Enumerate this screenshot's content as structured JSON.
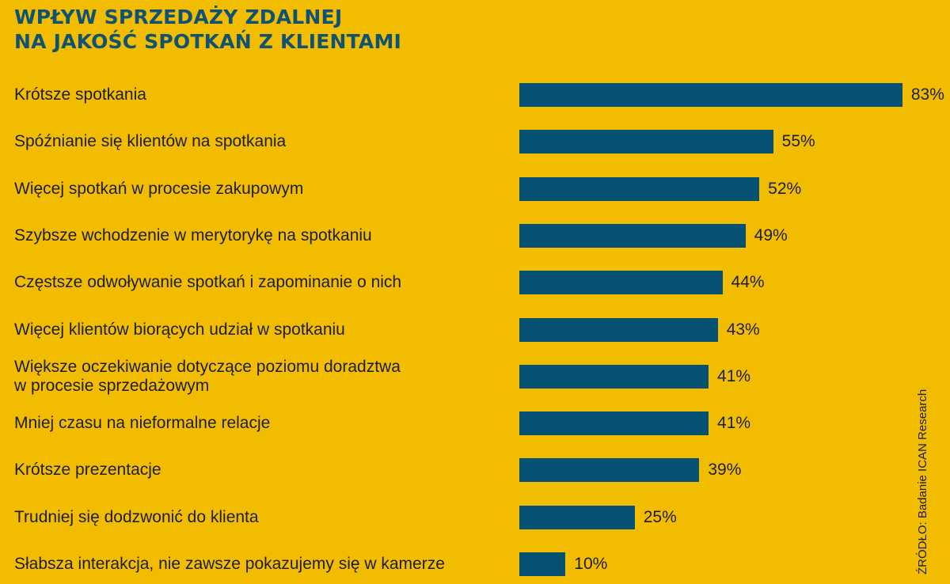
{
  "title_lines": [
    "WPŁYW SPRZEDAŻY ZDALNEJ",
    "NA JAKOŚĆ SPOTKAŃ Z KLIENTAMI"
  ],
  "source": "ŹRÓDŁO: Badanie ICAN Research",
  "colors": {
    "background": "#f2bd00",
    "bar": "#065273",
    "title": "#0f5274"
  },
  "chart_data": {
    "type": "bar",
    "orientation": "horizontal",
    "categories": [
      [
        "Krótsze spotkania"
      ],
      [
        "Spóźnianie się klientów na spotkania"
      ],
      [
        "Więcej spotkań w procesie zakupowym"
      ],
      [
        "Szybsze wchodzenie w merytorykę na spotkaniu"
      ],
      [
        "Częstsze odwoływanie spotkań i zapominanie o nich"
      ],
      [
        "Więcej klientów biorących udział w spotkaniu"
      ],
      [
        "Większe oczekiwanie dotyczące poziomu doradztwa",
        "w procesie sprzedażowym"
      ],
      [
        "Mniej czasu na nieformalne relacje"
      ],
      [
        "Krótsze prezentacje"
      ],
      [
        "Trudniej się dodzwonić do klienta"
      ],
      [
        "Słabsza interakcja, nie zawsze pokazujemy się w kamerze"
      ]
    ],
    "values": [
      83,
      55,
      52,
      49,
      44,
      43,
      41,
      41,
      39,
      25,
      10
    ],
    "value_labels": [
      "83%",
      "55%",
      "52%",
      "49%",
      "44%",
      "43%",
      "41%",
      "41%",
      "39%",
      "25%",
      "10%"
    ],
    "unit": "%",
    "xlim": [
      0,
      100
    ],
    "grid": false,
    "legend": "none"
  }
}
